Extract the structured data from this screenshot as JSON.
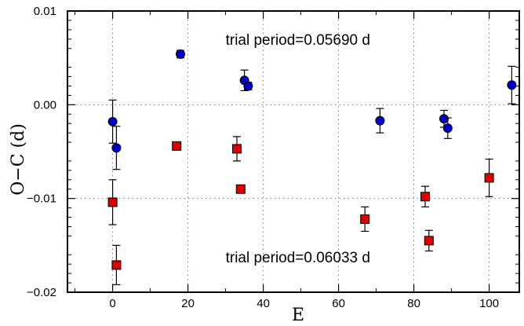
{
  "chart_data": {
    "type": "scatter",
    "xlabel": "E",
    "ylabel": "O−C (d)",
    "xlim": [
      -12,
      108
    ],
    "ylim": [
      -0.02,
      0.01
    ],
    "x_ticks": [
      0,
      20,
      40,
      60,
      80,
      100
    ],
    "x_tick_labels": [
      "0",
      "20",
      "40",
      "60",
      "80",
      "100"
    ],
    "y_ticks": [
      0.01,
      0.0,
      -0.01,
      -0.02
    ],
    "y_tick_labels": [
      "0.01",
      "0.00",
      "−0.01",
      "−0.02"
    ],
    "grid": true,
    "annotations": [
      {
        "text": "trial period=0.05690 d",
        "x": 30,
        "y": 0.0064
      },
      {
        "text": "trial period=0.06033 d",
        "x": 30,
        "y": -0.0168
      }
    ],
    "series": [
      {
        "marker": "circle",
        "color": "#0000cc",
        "points": [
          {
            "x": 0,
            "y": -0.0018,
            "err": 0.0023
          },
          {
            "x": 1,
            "y": -0.0046,
            "err": 0.0023
          },
          {
            "x": 18,
            "y": 0.0054,
            "err": 0.0004
          },
          {
            "x": 35,
            "y": 0.0026,
            "err": 0.0011
          },
          {
            "x": 36,
            "y": 0.002,
            "err": 0.0004
          },
          {
            "x": 71,
            "y": -0.0017,
            "err": 0.0013
          },
          {
            "x": 88,
            "y": -0.0015,
            "err": 0.0009
          },
          {
            "x": 89,
            "y": -0.0025,
            "err": 0.0011
          },
          {
            "x": 106,
            "y": 0.0021,
            "err": 0.002
          }
        ]
      },
      {
        "marker": "square",
        "color": "#dd0000",
        "points": [
          {
            "x": 0,
            "y": -0.0104,
            "err": 0.0024
          },
          {
            "x": 1,
            "y": -0.0171,
            "err": 0.0021
          },
          {
            "x": 17,
            "y": -0.0044,
            "err": 0.0003
          },
          {
            "x": 33,
            "y": -0.0047,
            "err": 0.0013
          },
          {
            "x": 34,
            "y": -0.009,
            "err": 0.0003
          },
          {
            "x": 67,
            "y": -0.0122,
            "err": 0.0013
          },
          {
            "x": 83,
            "y": -0.0098,
            "err": 0.0011
          },
          {
            "x": 84,
            "y": -0.0145,
            "err": 0.0011
          },
          {
            "x": 100,
            "y": -0.0078,
            "err": 0.002
          }
        ]
      }
    ]
  }
}
